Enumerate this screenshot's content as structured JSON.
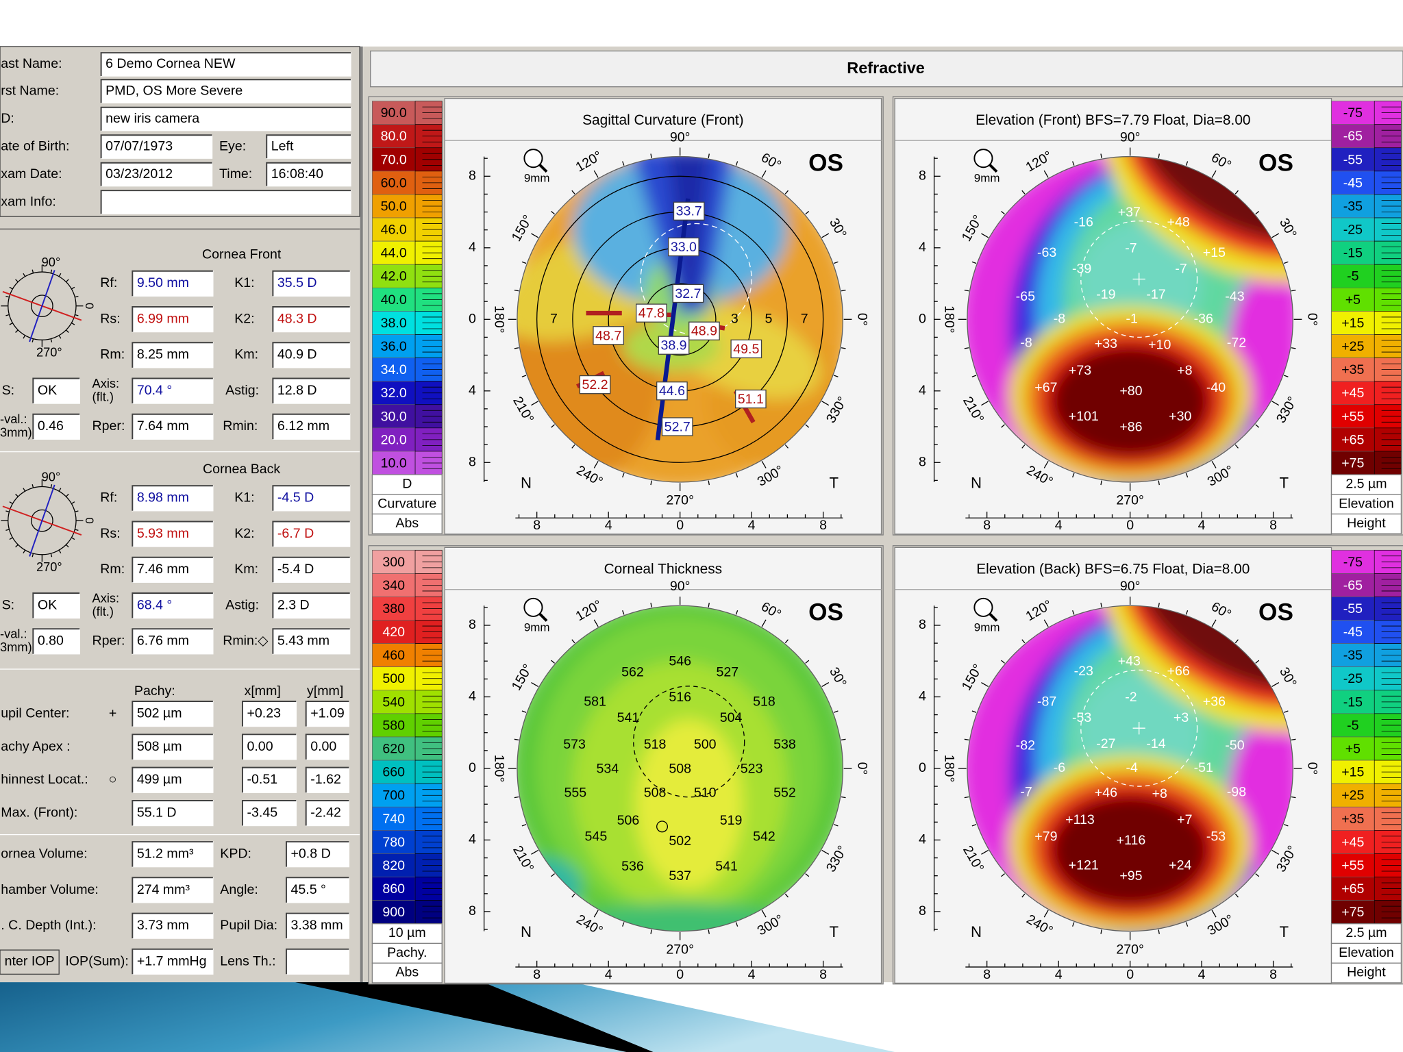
{
  "header": {
    "title": "Refractive"
  },
  "patient": {
    "rows": [
      {
        "label": "ast Name:",
        "value": "6 Demo Cornea NEW"
      },
      {
        "label": "rst Name:",
        "value": "PMD, OS More Severe"
      },
      {
        "label": "D:",
        "value": "new iris camera"
      },
      {
        "label": "ate of Birth:",
        "value": "07/07/1973"
      },
      {
        "label": "xam Date:",
        "value": "03/23/2012"
      },
      {
        "label": "xam Info:"
      }
    ],
    "eye": {
      "label": "Eye:",
      "value": "Left"
    },
    "time": {
      "label": "Time:",
      "value": "16:08:40"
    }
  },
  "cornea_front": {
    "title": "Cornea Front",
    "dial": {
      "top": "90°",
      "bottom": "270°",
      "right": "0"
    },
    "fields": [
      {
        "label": "Rf:",
        "value": "9.50 mm",
        "color": "#1010a0"
      },
      {
        "label": "K1:",
        "value": "35.5 D",
        "color": "#1010a0"
      },
      {
        "label": "Rs:",
        "value": "6.99 mm",
        "color": "#c01010"
      },
      {
        "label": "K2:",
        "value": "48.3 D",
        "color": "#c01010"
      },
      {
        "label": "Rm:",
        "value": "8.25 mm"
      },
      {
        "label": "Km:",
        "value": "40.9 D"
      },
      {
        "label": "S:",
        "value": "OK"
      },
      {
        "label": [
          "Axis:",
          "(flt.)"
        ],
        "value": "70.4 °",
        "color": "#1010a0"
      },
      {
        "label": "Astig:",
        "value": "12.8 D"
      },
      {
        "label": [
          "-val.:",
          "3mm)"
        ],
        "value": "0.46"
      },
      {
        "label": "Rper:",
        "value": "7.64 mm"
      },
      {
        "label": "Rmin:",
        "value": "6.12 mm"
      }
    ]
  },
  "cornea_back": {
    "title": "Cornea Back",
    "dial": {
      "top": "90°",
      "bottom": "270°",
      "right": "0"
    },
    "fields": [
      {
        "label": "Rf:",
        "value": "8.98 mm",
        "color": "#1010a0"
      },
      {
        "label": "K1:",
        "value": "-4.5 D",
        "color": "#1010a0"
      },
      {
        "label": "Rs:",
        "value": "5.93 mm",
        "color": "#c01010"
      },
      {
        "label": "K2:",
        "value": "-6.7 D",
        "color": "#c01010"
      },
      {
        "label": "Rm:",
        "value": "7.46 mm"
      },
      {
        "label": "Km:",
        "value": "-5.4 D"
      },
      {
        "label": "S:",
        "value": "OK"
      },
      {
        "label": [
          "Axis:",
          "(flt.)"
        ],
        "value": "68.4 °",
        "color": "#1010a0"
      },
      {
        "label": "Astig:",
        "value": "2.3 D"
      },
      {
        "label": [
          "-val.:",
          "3mm)"
        ],
        "value": "0.80"
      },
      {
        "label": "Rper:",
        "value": "6.76 mm"
      },
      {
        "label": "Rmin:◇",
        "value": "5.43 mm"
      }
    ]
  },
  "pachy_table": {
    "headers": [
      "Pachy:",
      "x[mm]",
      "y[mm]"
    ],
    "rows": [
      {
        "label": "upil Center:",
        "symbol": "+",
        "pachy": "502 µm",
        "x": "+0.23",
        "y": "+1.09"
      },
      {
        "label": "achy Apex :",
        "pachy": "508 µm",
        "x": "0.00",
        "y": "0.00"
      },
      {
        "label": "hinnest Locat.:",
        "symbol": "○",
        "pachy": "499 µm",
        "x": "-0.51",
        "y": "-1.62"
      },
      {
        "label": "Max. (Front):",
        "pachy": "55.1 D",
        "x": "-3.45",
        "y": "-2.42"
      }
    ]
  },
  "volumes": {
    "rows": [
      {
        "label": "ornea Volume:",
        "value": "51.2 mm³",
        "label2": "KPD:",
        "value2": "+0.8 D"
      },
      {
        "label": "hamber Volume:",
        "value": "274 mm³",
        "label2": "Angle:",
        "value2": "45.5 °"
      },
      {
        "label": ". C. Depth (Int.):",
        "value": "3.73 mm",
        "label2": "Pupil Dia:",
        "value2": "3.38 mm"
      }
    ],
    "button": "nter IOP",
    "iop": {
      "label": "IOP(Sum):",
      "value": "+1.7 mmHg"
    },
    "lens": {
      "label": "Lens Th.:"
    }
  },
  "map_axes": {
    "angles": [
      "90°",
      "120°",
      "60°",
      "150°",
      "30°",
      "180°",
      "0°",
      "210°",
      "330°",
      "240°",
      "300°",
      "270°"
    ],
    "y_ticks": [
      8,
      4,
      0,
      4,
      8
    ],
    "x_ticks": [
      8,
      4,
      0,
      4,
      8
    ],
    "nasal": "N",
    "temporal": "T",
    "eye": "OS",
    "zoom": "9mm"
  },
  "maps": [
    {
      "title": "Sagittal Curvature (Front)",
      "scale": {
        "side": "left",
        "steps": [
          {
            "label": "90.0",
            "color": "#c85a5a"
          },
          {
            "label": "80.0",
            "color": "#c01818"
          },
          {
            "label": "70.0",
            "color": "#a00000"
          },
          {
            "label": "60.0",
            "color": "#e06010"
          },
          {
            "label": "50.0",
            "color": "#f0a000"
          },
          {
            "label": "46.0",
            "color": "#f0d000"
          },
          {
            "label": "44.0",
            "color": "#f0f000"
          },
          {
            "label": "42.0",
            "color": "#90e010"
          },
          {
            "label": "40.0",
            "color": "#20e080"
          },
          {
            "label": "38.0",
            "color": "#00e0e0"
          },
          {
            "label": "36.0",
            "color": "#00a0f0"
          },
          {
            "label": "34.0",
            "color": "#1060f0"
          },
          {
            "label": "32.0",
            "color": "#1010c0"
          },
          {
            "label": "30.0",
            "color": "#4010a0"
          },
          {
            "label": "20.0",
            "color": "#8020c0"
          },
          {
            "label": "10.0",
            "color": "#c050e0"
          }
        ],
        "unit": "D",
        "caption": [
          "Curvature",
          "Abs"
        ]
      },
      "labels": [
        {
          "text": "33.7",
          "color": "#1a1aa0"
        },
        {
          "text": "33.0",
          "color": "#1a1aa0"
        },
        {
          "text": "32.7",
          "color": "#1a1aa0"
        },
        {
          "text": "47.8",
          "color": "#b01010"
        },
        {
          "text": "48.9",
          "color": "#b01010"
        },
        {
          "text": "48.7",
          "color": "#b01010"
        },
        {
          "text": "49.5",
          "color": "#b01010"
        },
        {
          "text": "38.9",
          "color": "#1a1aa0"
        },
        {
          "text": "52.2",
          "color": "#b01010"
        },
        {
          "text": "44.6",
          "color": "#1a1aa0"
        },
        {
          "text": "51.1",
          "color": "#b01010"
        },
        {
          "text": "52.7",
          "color": "#1a1aa0"
        }
      ],
      "ring_labels": [
        "7",
        "3",
        "5",
        "7"
      ]
    },
    {
      "title": "Elevation (Front)  BFS=7.79 Float, Dia=8.00",
      "scale": {
        "side": "right",
        "steps": [
          {
            "label": "-75",
            "color": "#e030e0"
          },
          {
            "label": "-65",
            "color": "#a020a0"
          },
          {
            "label": "-55",
            "color": "#2020c0"
          },
          {
            "label": "-45",
            "color": "#2050f0"
          },
          {
            "label": "-35",
            "color": "#10a0e0"
          },
          {
            "label": "-25",
            "color": "#10c8c8"
          },
          {
            "label": "-15",
            "color": "#10d080"
          },
          {
            "label": "-5",
            "color": "#20d020"
          },
          {
            "label": "+5",
            "color": "#60e000"
          },
          {
            "label": "+15",
            "color": "#f0f000"
          },
          {
            "label": "+25",
            "color": "#f0b000"
          },
          {
            "label": "+35",
            "color": "#f07050"
          },
          {
            "label": "+45",
            "color": "#f02020"
          },
          {
            "label": "+55",
            "color": "#e00000"
          },
          {
            "label": "+65",
            "color": "#b00000"
          },
          {
            "label": "+75",
            "color": "#700000"
          }
        ],
        "unit": "2.5 µm",
        "caption": [
          "Elevation",
          "Height"
        ]
      },
      "label_color": "#ffffff",
      "labels": [
        "-16",
        "+37",
        "+48",
        "-63",
        "-7",
        "+15",
        "-39",
        "-7",
        "-65",
        "-19",
        "-17",
        "-43",
        "-8",
        "-1",
        "-36",
        "-8",
        "+33",
        "+10",
        "-72",
        "+73",
        "+8",
        "+67",
        "+80",
        "-40",
        "+101",
        "+86",
        "+30"
      ]
    },
    {
      "title": "Corneal Thickness",
      "scale": {
        "side": "left",
        "steps": [
          {
            "label": "300",
            "color": "#f0a0a0"
          },
          {
            "label": "340",
            "color": "#f07070"
          },
          {
            "label": "380",
            "color": "#f04040"
          },
          {
            "label": "420",
            "color": "#e02020"
          },
          {
            "label": "460",
            "color": "#f08000"
          },
          {
            "label": "500",
            "color": "#f0f000"
          },
          {
            "label": "540",
            "color": "#a0e000"
          },
          {
            "label": "580",
            "color": "#60d000"
          },
          {
            "label": "620",
            "color": "#40c080"
          },
          {
            "label": "660",
            "color": "#00c0c0"
          },
          {
            "label": "700",
            "color": "#00a0f0"
          },
          {
            "label": "740",
            "color": "#0070f0"
          },
          {
            "label": "780",
            "color": "#0040d0"
          },
          {
            "label": "820",
            "color": "#0020b0"
          },
          {
            "label": "860",
            "color": "#0000a0"
          },
          {
            "label": "900",
            "color": "#000080"
          }
        ],
        "unit": "10 µm",
        "caption": [
          "Pachy.",
          "Abs"
        ]
      },
      "label_color": "#000000",
      "labels": [
        "562",
        "546",
        "527",
        "581",
        "516",
        "518",
        "541",
        "504",
        "573",
        "518",
        "500",
        "538",
        "534",
        "508",
        "523",
        "555",
        "508",
        "510",
        "552",
        "506",
        "502",
        "519",
        "545",
        "542",
        "536",
        "537",
        "541"
      ]
    },
    {
      "title": "Elevation (Back)  BFS=6.75 Float, Dia=8.00",
      "scale": {
        "side": "right",
        "steps": [
          {
            "label": "-75",
            "color": "#e030e0"
          },
          {
            "label": "-65",
            "color": "#a020a0"
          },
          {
            "label": "-55",
            "color": "#2020c0"
          },
          {
            "label": "-45",
            "color": "#2050f0"
          },
          {
            "label": "-35",
            "color": "#10a0e0"
          },
          {
            "label": "-25",
            "color": "#10c8c8"
          },
          {
            "label": "-15",
            "color": "#10d080"
          },
          {
            "label": "-5",
            "color": "#20d020"
          },
          {
            "label": "+5",
            "color": "#60e000"
          },
          {
            "label": "+15",
            "color": "#f0f000"
          },
          {
            "label": "+25",
            "color": "#f0b000"
          },
          {
            "label": "+35",
            "color": "#f07050"
          },
          {
            "label": "+45",
            "color": "#f02020"
          },
          {
            "label": "+55",
            "color": "#e00000"
          },
          {
            "label": "+65",
            "color": "#b00000"
          },
          {
            "label": "+75",
            "color": "#700000"
          }
        ],
        "unit": "2.5 µm",
        "caption": [
          "Elevation",
          "Height"
        ]
      },
      "label_color": "#ffffff",
      "labels": [
        "-23",
        "+43",
        "+66",
        "-87",
        "-2",
        "+36",
        "-53",
        "+3",
        "-82",
        "-27",
        "-14",
        "-50",
        "-6",
        "-4",
        "-51",
        "-7",
        "+46",
        "+8",
        "-98",
        "+113",
        "+7",
        "+79",
        "+116",
        "-53",
        "+121",
        "+95",
        "+24"
      ]
    }
  ]
}
